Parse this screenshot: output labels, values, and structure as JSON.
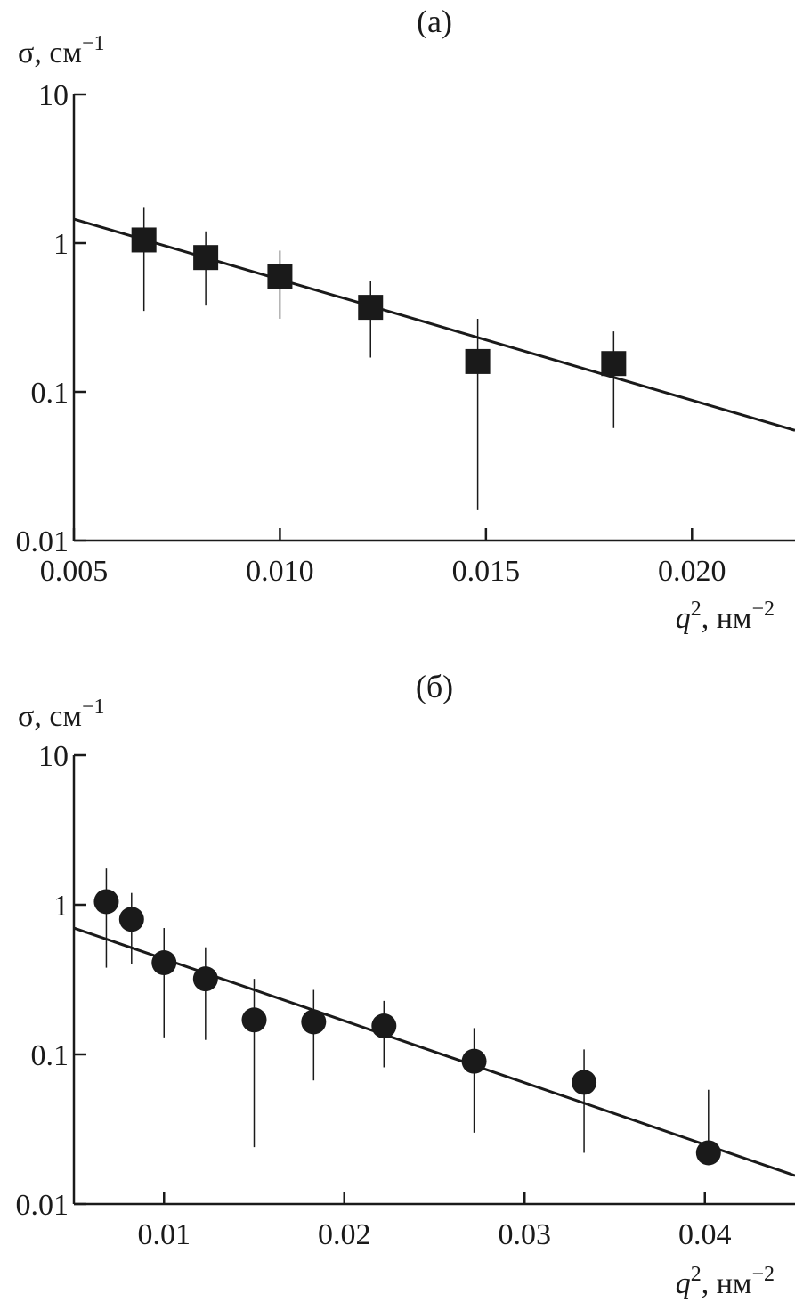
{
  "chart_data": [
    {
      "type": "scatter",
      "title": "(а)",
      "ylabel": "σ, см",
      "ylabel_exp": "−1",
      "xlabel": "q",
      "xlabel_sup": "2",
      "xlabel_unit": ", нм",
      "xlabel_unit_exp": "−2",
      "yscale": "log",
      "ylim": [
        0.01,
        10
      ],
      "xlim": [
        0.005,
        0.0225
      ],
      "xticks": [
        0.005,
        0.01,
        0.015,
        0.02
      ],
      "xtick_labels": [
        "0.005",
        "0.010",
        "0.015",
        "0.020"
      ],
      "yticks": [
        0.01,
        0.1,
        1,
        10
      ],
      "ytick_labels": [
        "0.01",
        "0.1",
        "1",
        "10"
      ],
      "marker": "square",
      "grid": false,
      "points": [
        {
          "x": 0.0067,
          "y": 1.05,
          "err_low": 0.35,
          "err_high": 1.75
        },
        {
          "x": 0.0082,
          "y": 0.8,
          "err_low": 0.38,
          "err_high": 1.2
        },
        {
          "x": 0.01,
          "y": 0.6,
          "err_low": 0.31,
          "err_high": 0.89
        },
        {
          "x": 0.0122,
          "y": 0.37,
          "err_low": 0.17,
          "err_high": 0.56
        },
        {
          "x": 0.0148,
          "y": 0.16,
          "err_low": 0.016,
          "err_high": 0.31
        },
        {
          "x": 0.0181,
          "y": 0.155,
          "err_low": 0.057,
          "err_high": 0.255
        }
      ],
      "fit": {
        "x": [
          0.005,
          0.0225
        ],
        "y": [
          1.45,
          0.055
        ]
      }
    },
    {
      "type": "scatter",
      "title": "(б)",
      "ylabel": "σ, см",
      "ylabel_exp": "−1",
      "xlabel": "q",
      "xlabel_sup": "2",
      "xlabel_unit": ", нм",
      "xlabel_unit_exp": "−2",
      "yscale": "log",
      "ylim": [
        0.01,
        10
      ],
      "xlim": [
        0.005,
        0.045
      ],
      "xticks": [
        0.01,
        0.02,
        0.03,
        0.04
      ],
      "xtick_labels": [
        "0.01",
        "0.02",
        "0.03",
        "0.04"
      ],
      "yticks": [
        0.01,
        0.1,
        1,
        10
      ],
      "ytick_labels": [
        "0.01",
        "0.1",
        "1",
        "10"
      ],
      "marker": "circle",
      "grid": false,
      "points": [
        {
          "x": 0.0068,
          "y": 1.05,
          "err_low": 0.38,
          "err_high": 1.75
        },
        {
          "x": 0.0082,
          "y": 0.8,
          "err_low": 0.4,
          "err_high": 1.2
        },
        {
          "x": 0.01,
          "y": 0.41,
          "err_low": 0.13,
          "err_high": 0.7
        },
        {
          "x": 0.0123,
          "y": 0.32,
          "err_low": 0.125,
          "err_high": 0.52
        },
        {
          "x": 0.015,
          "y": 0.17,
          "err_low": 0.024,
          "err_high": 0.32
        },
        {
          "x": 0.0183,
          "y": 0.165,
          "err_low": 0.067,
          "err_high": 0.27
        },
        {
          "x": 0.0222,
          "y": 0.155,
          "err_low": 0.082,
          "err_high": 0.228
        },
        {
          "x": 0.0272,
          "y": 0.09,
          "err_low": 0.03,
          "err_high": 0.15
        },
        {
          "x": 0.0333,
          "y": 0.065,
          "err_low": 0.022,
          "err_high": 0.108
        },
        {
          "x": 0.0402,
          "y": 0.022,
          "err_low": 0.02,
          "err_high": 0.058
        }
      ],
      "fit": {
        "x": [
          0.005,
          0.045
        ],
        "y": [
          0.7,
          0.0155
        ]
      }
    }
  ]
}
